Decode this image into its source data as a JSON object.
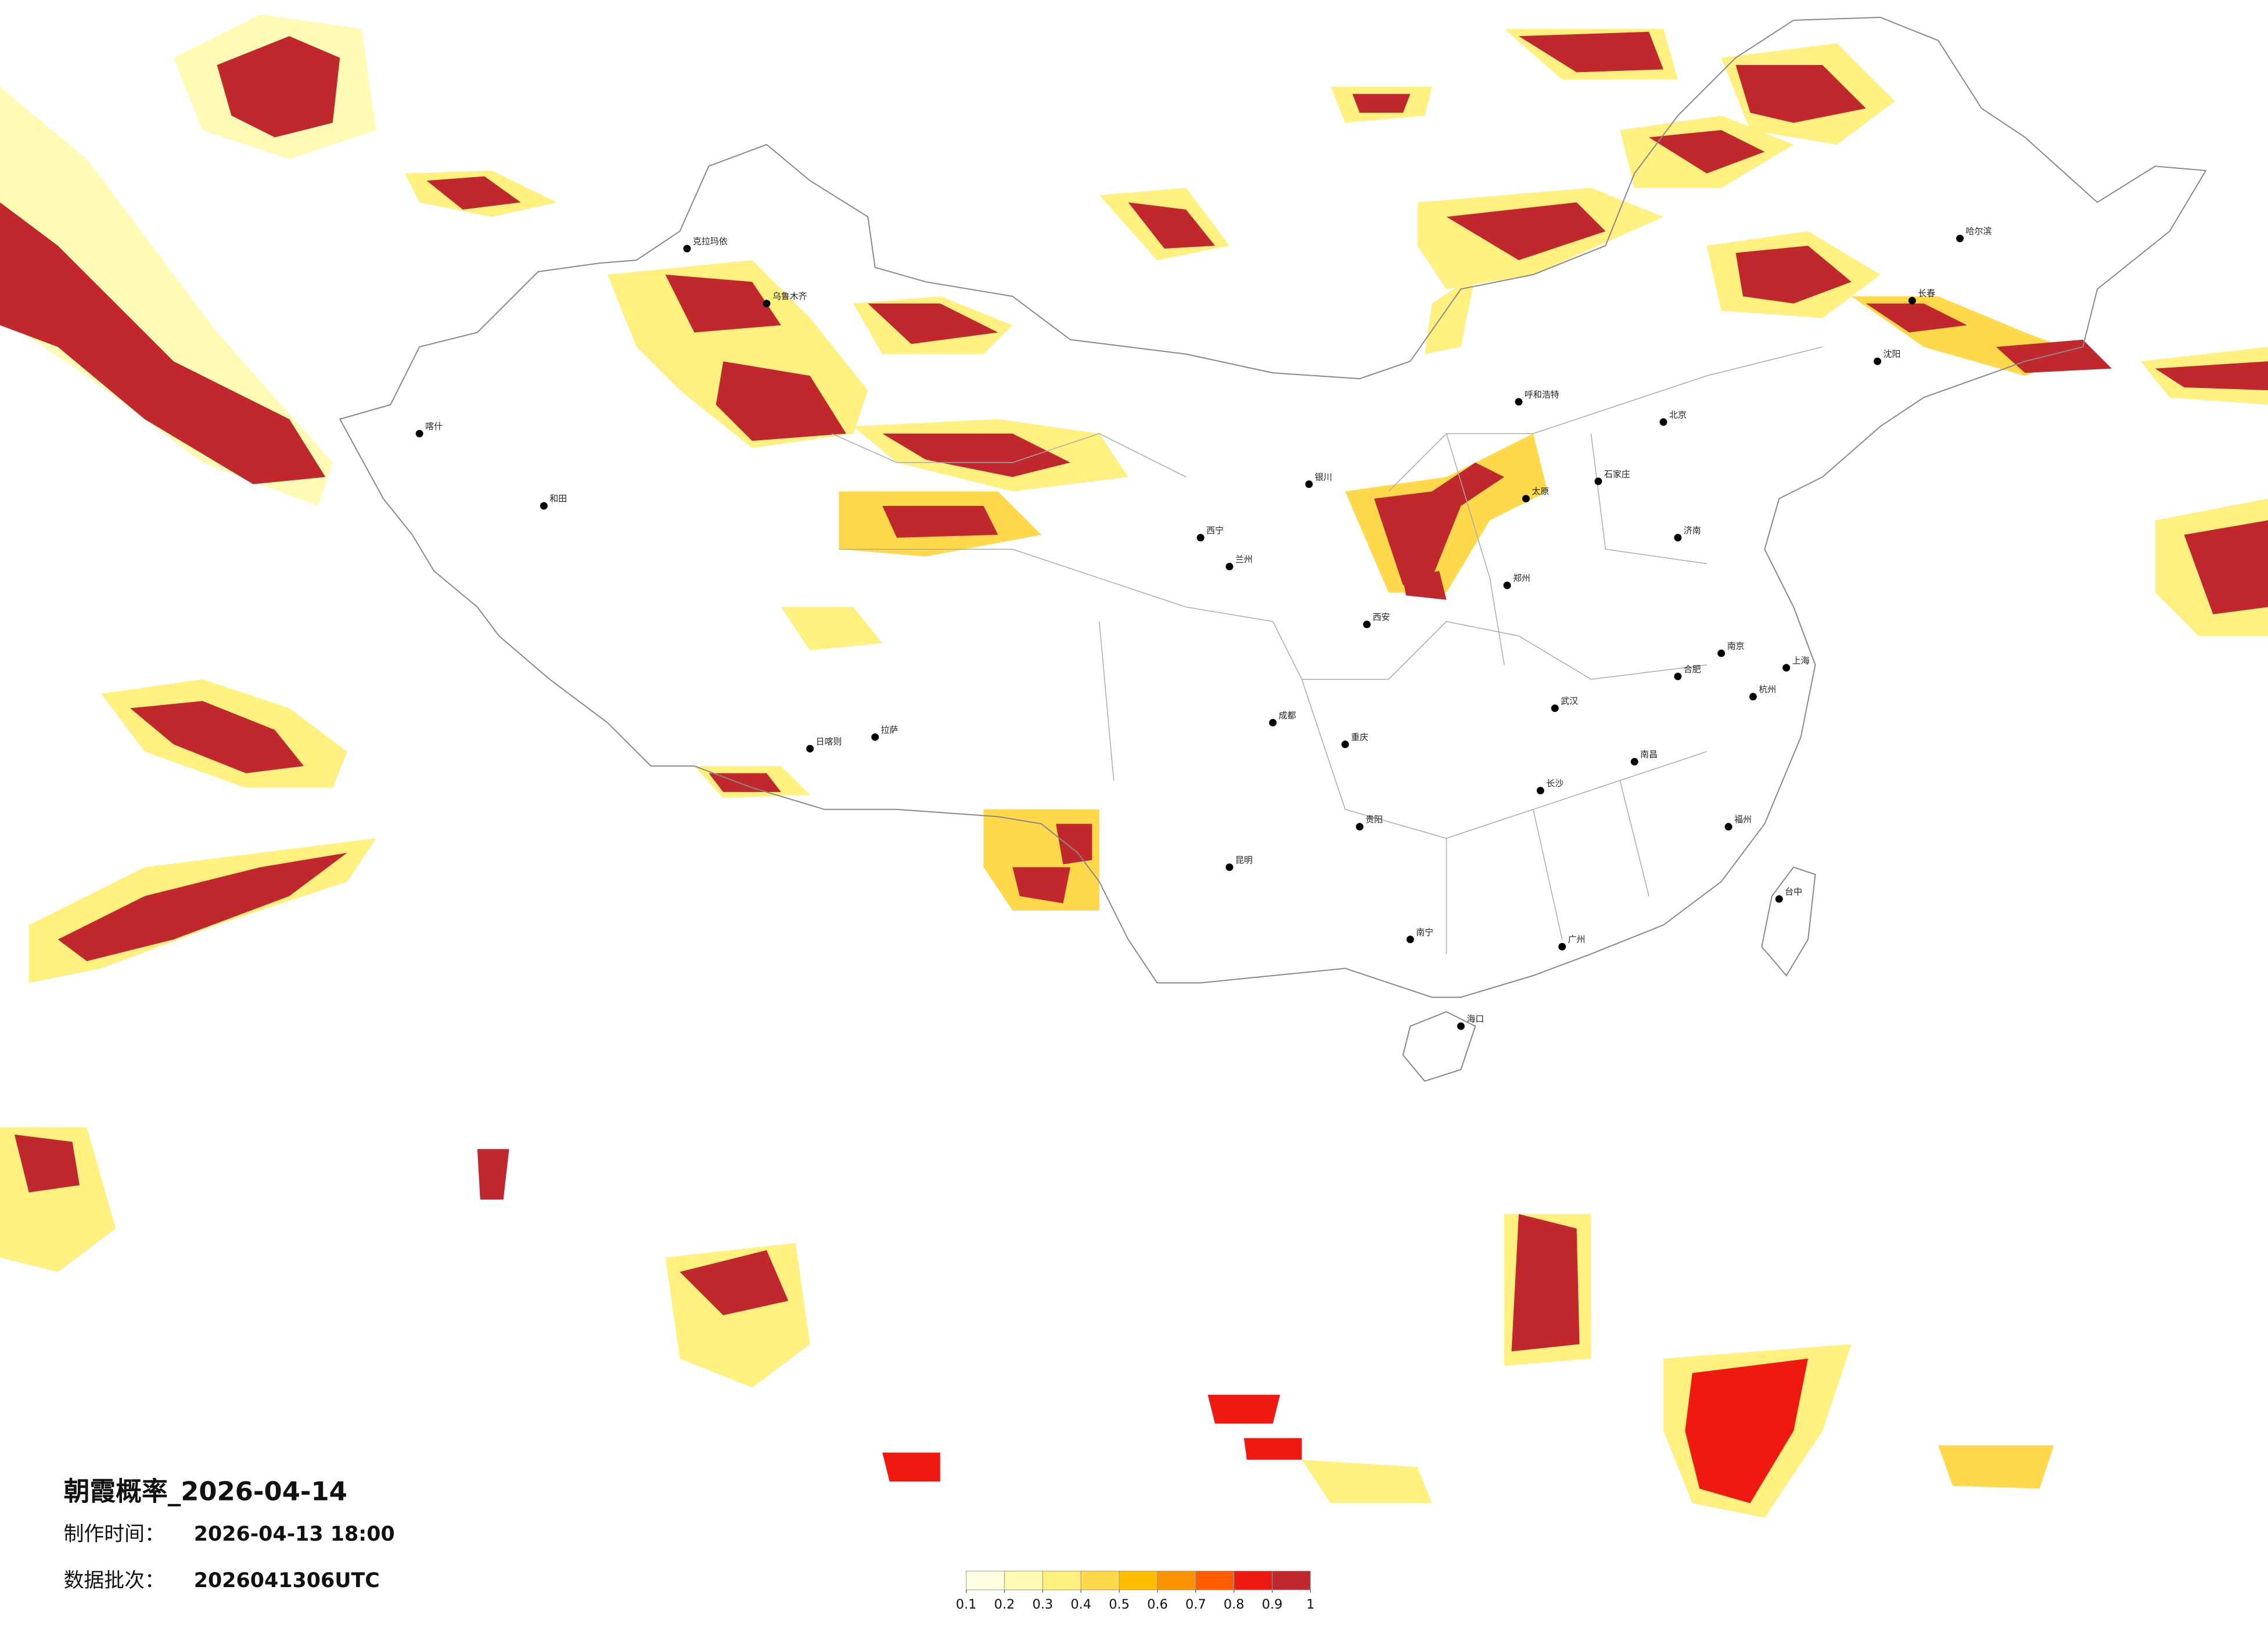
{
  "title": "朝霞概率_2026-04-14",
  "made_time": {
    "label": "制作时间：",
    "value": "2026-04-13 18:00"
  },
  "batch": {
    "label": "数据批次：",
    "value": "2026041306UTC"
  },
  "legend": {
    "ticks": [
      0.1,
      0.2,
      0.3,
      0.4,
      0.5,
      0.6,
      0.7,
      0.8,
      0.9,
      1
    ],
    "colors": [
      "#fffde2",
      "#fffab4",
      "#fff080",
      "#ffd84c",
      "#ffbf00",
      "#ff9200",
      "#ff5c00",
      "#ee1a12",
      "#c0282e"
    ]
  },
  "cities": [
    "乌鲁木齐",
    "克拉玛依",
    "喀什",
    "和田",
    "拉萨",
    "日喀则",
    "西宁",
    "兰州",
    "银川",
    "呼和浩特",
    "哈尔滨",
    "长春",
    "沈阳",
    "北京",
    "石家庄",
    "太原",
    "济南",
    "郑州",
    "西安",
    "成都",
    "重庆",
    "贵阳",
    "昆明",
    "南宁",
    "海口",
    "广州",
    "长沙",
    "武汉",
    "南昌",
    "福州",
    "杭州",
    "上海",
    "南京",
    "合肥",
    "台中"
  ]
}
